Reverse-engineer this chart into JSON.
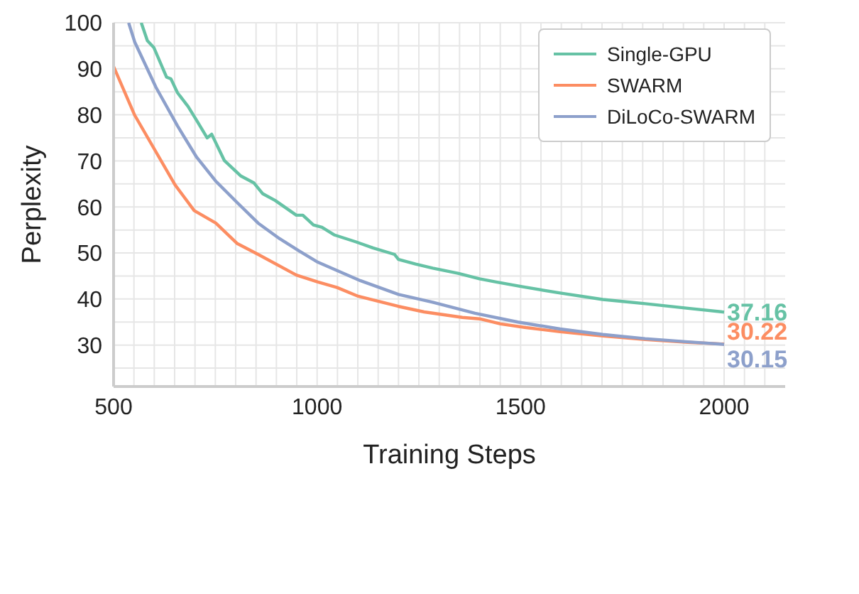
{
  "chart_data": {
    "type": "line",
    "xlabel": "Training Steps",
    "ylabel": "Perplexity",
    "xlim": [
      500,
      2150
    ],
    "xticks": [
      500,
      {
        "value": 550,
        "label": null
      },
      {
        "value": 600,
        "label": null
      },
      {
        "value": 650,
        "label": null
      },
      {
        "value": 700,
        "label": null
      },
      {
        "value": 750,
        "label": null
      },
      {
        "value": 800,
        "label": null
      },
      {
        "value": 850,
        "label": null
      },
      {
        "value": 900,
        "label": null
      },
      {
        "value": 950,
        "label": null
      },
      1000,
      {
        "value": 1050,
        "label": null
      },
      {
        "value": 1100,
        "label": null
      },
      {
        "value": 1150,
        "label": null
      },
      {
        "value": 1200,
        "label": null
      },
      {
        "value": 1250,
        "label": null
      },
      {
        "value": 1300,
        "label": null
      },
      {
        "value": 1350,
        "label": null
      },
      {
        "value": 1400,
        "label": null
      },
      {
        "value": 1450,
        "label": null
      },
      1500,
      {
        "value": 1550,
        "label": null
      },
      {
        "value": 1600,
        "label": null
      },
      {
        "value": 1650,
        "label": null
      },
      {
        "value": 1700,
        "label": null
      },
      {
        "value": 1750,
        "label": null
      },
      {
        "value": 1800,
        "label": null
      },
      {
        "value": 1850,
        "label": null
      },
      {
        "value": 1900,
        "label": null
      },
      {
        "value": 1950,
        "label": null
      },
      2000,
      {
        "value": 2050,
        "label": null
      },
      {
        "value": 2100,
        "label": null
      }
    ],
    "ylim": [
      21,
      100
    ],
    "yticks": [
      {
        "value": 25,
        "label": null
      },
      30,
      {
        "value": 35,
        "label": null
      },
      40,
      {
        "value": 45,
        "label": null
      },
      50,
      {
        "value": 55,
        "label": null
      },
      60,
      {
        "value": 65,
        "label": null
      },
      70,
      {
        "value": 75,
        "label": null
      },
      80,
      {
        "value": 85,
        "label": null
      },
      90,
      {
        "value": 95,
        "label": null
      },
      100
    ],
    "grid": true,
    "legend": "top right",
    "marker": "none",
    "line_style": "solid",
    "series": [
      {
        "name": "Single-GPU",
        "color": "#66c2a5",
        "x": [
          568,
          583,
          599,
          630,
          641,
          657,
          683,
          704,
          730,
          741,
          772,
          813,
          845,
          866,
          897,
          949,
          965,
          991,
          1012,
          1043,
          1096,
          1137,
          1190,
          1200,
          1242,
          1284,
          1346,
          1399,
          1440,
          1503,
          1597,
          1702,
          1806,
          1911,
          2000
        ],
        "values": [
          100,
          96.1,
          94.6,
          88.2,
          87.8,
          84.8,
          81.8,
          78.8,
          75.0,
          75.8,
          70.1,
          66.7,
          65.2,
          62.9,
          61.4,
          58.2,
          58.2,
          56.1,
          55.6,
          53.9,
          52.4,
          51.1,
          49.7,
          48.6,
          47.6,
          46.7,
          45.6,
          44.4,
          43.7,
          42.7,
          41.3,
          39.9,
          39.0,
          38.0,
          37.16
        ],
        "value_labels": [
          null,
          null,
          null,
          null,
          null,
          null,
          null,
          null,
          null,
          null,
          null,
          null,
          null,
          null,
          null,
          null,
          null,
          null,
          null,
          null,
          null,
          null,
          null,
          null,
          null,
          null,
          null,
          null,
          null,
          null,
          null,
          null,
          null,
          null,
          "37.16"
        ]
      },
      {
        "name": "SWARM",
        "color": "#fc8d62",
        "x": [
          500,
          552,
          651,
          698,
          751,
          803,
          855,
          949,
          1002,
          1049,
          1101,
          1200,
          1263,
          1357,
          1399,
          1451,
          1513,
          1597,
          1702,
          1806,
          1911,
          2000
        ],
        "values": [
          90.5,
          79.9,
          64.8,
          59.2,
          56.5,
          52.1,
          49.7,
          45.2,
          43.7,
          42.5,
          40.6,
          38.4,
          37.2,
          36.0,
          35.7,
          34.6,
          33.8,
          32.9,
          32.0,
          31.2,
          30.6,
          30.22
        ],
        "value_labels": [
          null,
          null,
          null,
          null,
          null,
          null,
          null,
          null,
          null,
          null,
          null,
          null,
          null,
          null,
          null,
          null,
          null,
          null,
          null,
          null,
          null,
          "30.22"
        ]
      },
      {
        "name": "DiLoCo-SWARM",
        "color": "#8da0cb",
        "x": [
          537,
          552,
          604,
          657,
          704,
          751,
          803,
          855,
          908,
          955,
          1002,
          1106,
          1200,
          1284,
          1388,
          1493,
          1597,
          1702,
          1806,
          1911,
          2000
        ],
        "values": [
          100,
          95.8,
          86.0,
          77.6,
          70.8,
          65.6,
          61.0,
          56.5,
          53.1,
          50.5,
          48.0,
          44.0,
          41.0,
          39.3,
          36.9,
          35.0,
          33.5,
          32.3,
          31.4,
          30.7,
          30.15
        ],
        "value_labels": [
          null,
          null,
          null,
          null,
          null,
          null,
          null,
          null,
          null,
          null,
          null,
          null,
          null,
          null,
          null,
          null,
          null,
          null,
          null,
          null,
          "30.15"
        ]
      }
    ]
  }
}
